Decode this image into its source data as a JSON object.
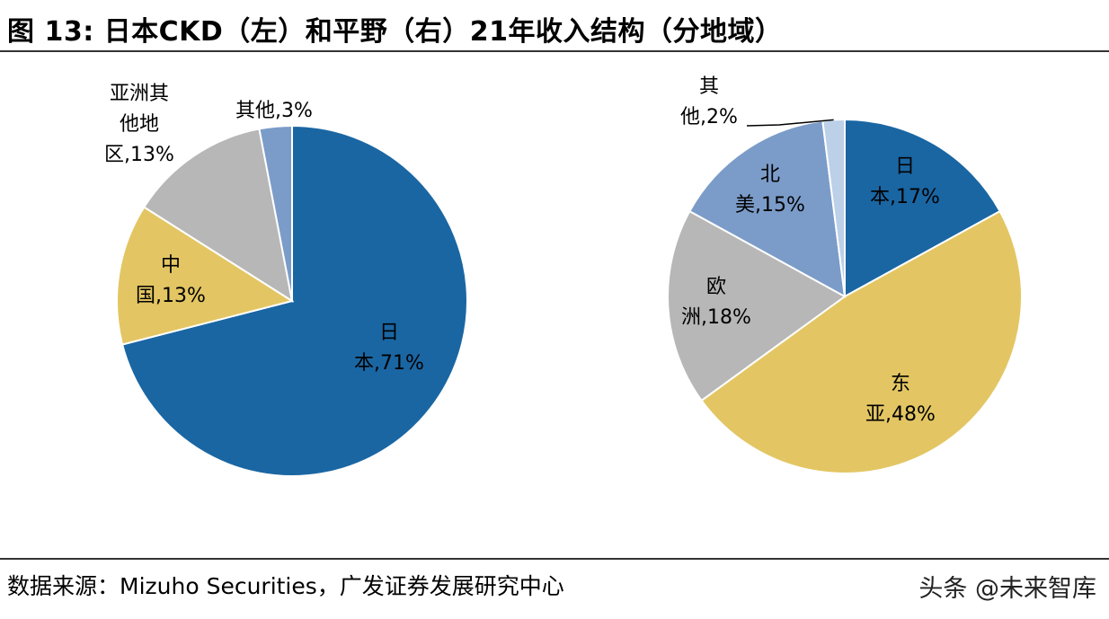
{
  "title": "图 13: 日本CKD（左）和平野（右）21年收入结构（分地域）",
  "source": "数据来源：Mizuho Securities，广发证券发展研究中心",
  "watermark": "头条 @未来智库",
  "colors": {
    "blue": "#1a66a3",
    "yellow": "#e3c663",
    "gray": "#b7b7b7",
    "light_blue": "#7b9cc9",
    "pale_blue": "#bcd0e8"
  },
  "chart_data": [
    {
      "type": "pie",
      "title": "",
      "slices": [
        {
          "label": "日本",
          "value": 71,
          "value_label": "71%",
          "label_lines": [
            "日",
            "本,71%"
          ],
          "color": "#1a66a3"
        },
        {
          "label": "中国",
          "value": 13,
          "value_label": "13%",
          "label_lines": [
            "中",
            "国,13%"
          ],
          "color": "#e3c663"
        },
        {
          "label": "亚洲其他地区",
          "value": 13,
          "value_label": "13%",
          "label_lines": [
            "亚洲其",
            "他地",
            "区,13%"
          ],
          "color": "#b7b7b7"
        },
        {
          "label": "其他",
          "value": 3,
          "value_label": "3%",
          "label_lines": [
            "其他,3%"
          ],
          "color": "#7b9cc9"
        }
      ]
    },
    {
      "type": "pie",
      "title": "",
      "slices": [
        {
          "label": "日本",
          "value": 17,
          "value_label": "17%",
          "label_lines": [
            "日",
            "本,17%"
          ],
          "color": "#1a66a3"
        },
        {
          "label": "东亚",
          "value": 48,
          "value_label": "48%",
          "label_lines": [
            "东",
            "亚,48%"
          ],
          "color": "#e3c663"
        },
        {
          "label": "欧洲",
          "value": 18,
          "value_label": "18%",
          "label_lines": [
            "欧",
            "洲,18%"
          ],
          "color": "#b7b7b7"
        },
        {
          "label": "北美",
          "value": 15,
          "value_label": "15%",
          "label_lines": [
            "北",
            "美,15%"
          ],
          "color": "#7b9cc9"
        },
        {
          "label": "其他",
          "value": 2,
          "value_label": "2%",
          "label_lines": [
            "其",
            "他,2%"
          ],
          "color": "#bcd0e8"
        }
      ]
    }
  ]
}
